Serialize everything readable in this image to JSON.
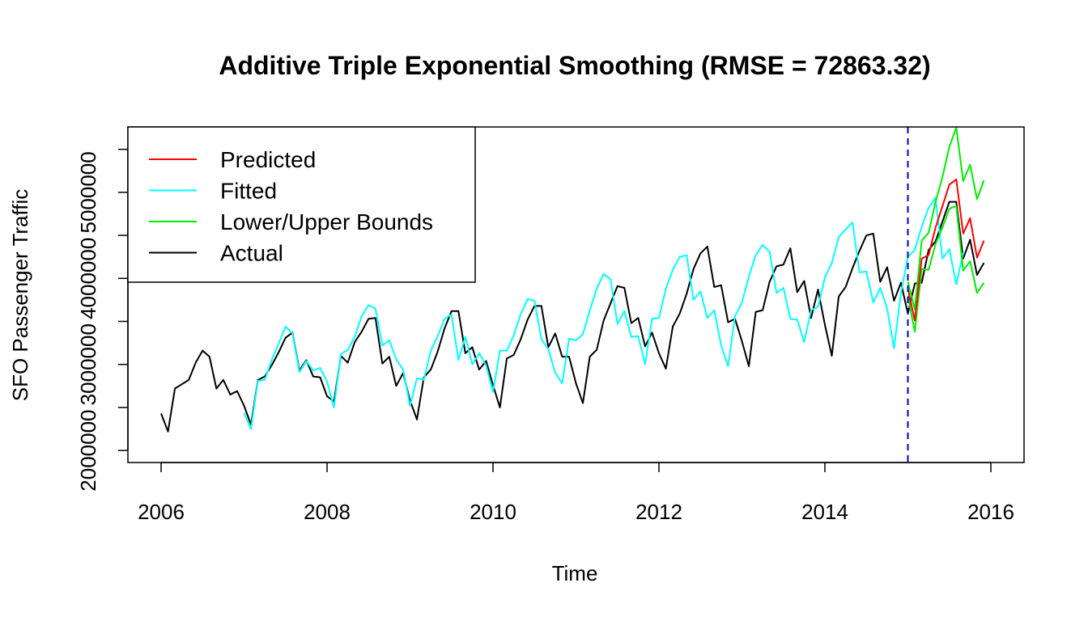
{
  "chart_data": {
    "type": "line",
    "title": "Additive Triple Exponential Smoothing (RMSE = 72863.32)",
    "xlabel": "Time",
    "ylabel": "SFO Passenger Traffic",
    "xlim": [
      2005.6,
      2016.4
    ],
    "ylim": [
      1860000,
      5760000
    ],
    "x_ticks": [
      2006,
      2008,
      2010,
      2012,
      2014,
      2016
    ],
    "y_ticks": [
      2000000,
      2500000,
      3000000,
      3500000,
      4000000,
      4500000,
      5000000,
      5500000
    ],
    "y_tick_labels": [
      "2000000",
      "",
      "3000000",
      "",
      "4000000",
      "",
      "5000000",
      ""
    ],
    "forecast_start": 2015,
    "legend": {
      "position": "top-left",
      "entries": [
        {
          "name": "Predicted",
          "color": "#ff0000"
        },
        {
          "name": "Fitted",
          "color": "#00ffff"
        },
        {
          "name": "Lower/Upper Bounds",
          "color": "#00ee00"
        },
        {
          "name": "Actual",
          "color": "#000000"
        }
      ]
    },
    "series": [
      {
        "name": "Actual",
        "color": "#000000",
        "x_start": 2006,
        "step": 0.083333,
        "values": [
          2430000,
          2220000,
          2720000,
          2770000,
          2820000,
          3020000,
          3160000,
          3090000,
          2720000,
          2820000,
          2650000,
          2690000,
          2520000,
          2300000,
          2820000,
          2860000,
          2990000,
          3140000,
          3310000,
          3370000,
          2930000,
          3050000,
          2860000,
          2850000,
          2630000,
          2570000,
          3100000,
          3020000,
          3260000,
          3380000,
          3530000,
          3540000,
          3010000,
          3090000,
          2750000,
          2900000,
          2580000,
          2360000,
          2850000,
          2940000,
          3150000,
          3420000,
          3620000,
          3620000,
          3130000,
          3200000,
          2940000,
          3040000,
          2760000,
          2500000,
          3070000,
          3110000,
          3290000,
          3520000,
          3680000,
          3680000,
          3200000,
          3360000,
          3090000,
          3090000,
          2780000,
          2550000,
          3090000,
          3170000,
          3510000,
          3710000,
          3910000,
          3890000,
          3480000,
          3540000,
          3210000,
          3370000,
          3130000,
          2950000,
          3440000,
          3590000,
          3820000,
          4110000,
          4290000,
          4370000,
          3900000,
          3920000,
          3490000,
          3530000,
          3270000,
          2980000,
          3610000,
          3630000,
          3960000,
          4140000,
          4160000,
          4350000,
          3840000,
          3970000,
          3540000,
          3870000,
          3460000,
          3100000,
          3790000,
          3900000,
          4120000,
          4320000,
          4500000,
          4520000,
          3960000,
          4130000,
          3740000,
          3950000,
          3590000,
          3940000,
          3950000,
          4330000,
          4430000,
          4660000,
          4890000,
          4890000,
          4230000,
          4450000,
          4040000,
          4180000
        ]
      },
      {
        "name": "Fitted",
        "color": "#00ffff",
        "x_start": 2007,
        "step": 0.083333,
        "values": [
          2440000,
          2250000,
          2810000,
          2820000,
          3050000,
          3240000,
          3440000,
          3360000,
          2910000,
          3040000,
          2930000,
          2960000,
          2800000,
          2500000,
          3120000,
          3170000,
          3320000,
          3560000,
          3690000,
          3650000,
          3220000,
          3280000,
          3060000,
          2940000,
          2520000,
          2840000,
          2820000,
          3160000,
          3330000,
          3530000,
          3580000,
          3050000,
          3320000,
          3000000,
          3130000,
          2990000,
          2680000,
          3160000,
          3160000,
          3340000,
          3580000,
          3760000,
          3740000,
          3290000,
          3180000,
          2900000,
          2780000,
          3300000,
          3280000,
          3350000,
          3630000,
          3880000,
          4050000,
          3990000,
          3470000,
          3620000,
          3320000,
          3330000,
          3000000,
          3530000,
          3540000,
          3880000,
          4100000,
          4250000,
          4270000,
          3750000,
          3850000,
          3540000,
          3630000,
          3220000,
          2980000,
          3560000,
          3720000,
          4020000,
          4270000,
          4390000,
          4310000,
          3830000,
          3890000,
          3530000,
          3520000,
          3260000,
          3630000,
          3670000,
          4010000,
          4180000,
          4480000,
          4570000,
          4650000,
          4070000,
          4080000,
          3720000,
          3890000,
          3650000,
          3190000,
          3830000,
          4250000,
          4330000,
          4600000,
          4820000,
          4940000,
          4230000,
          4340000,
          3930000,
          4300000
        ]
      },
      {
        "name": "Predicted",
        "color": "#ff0000",
        "x_start": 2015,
        "step": 0.083333,
        "values": [
          3880000,
          3510000,
          4230000,
          4270000,
          4590000,
          4840000,
          5090000,
          5150000,
          4520000,
          4700000,
          4240000,
          4440000
        ]
      },
      {
        "name": "Lower Bound",
        "color": "#00ee00",
        "x_start": 2015,
        "step": 0.083333,
        "values": [
          3800000,
          3380000,
          4110000,
          4100000,
          4400000,
          4590000,
          4810000,
          4840000,
          4090000,
          4200000,
          3830000,
          3950000
        ]
      },
      {
        "name": "Upper Bound",
        "color": "#00ee00",
        "x_start": 2015,
        "step": 0.083333,
        "values": [
          3960000,
          3640000,
          4440000,
          4530000,
          4890000,
          5180000,
          5530000,
          5750000,
          5130000,
          5320000,
          4920000,
          5140000
        ]
      }
    ]
  }
}
